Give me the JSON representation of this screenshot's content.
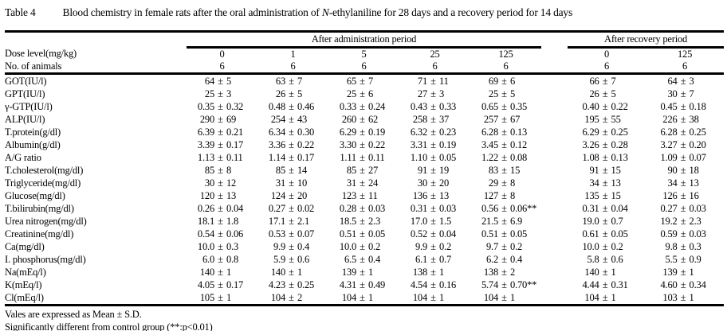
{
  "title": {
    "label": "Table 4",
    "caption_part1": "Blood chemistry in female rats after the oral administration of ",
    "caption_compound": "N",
    "caption_part2": "-ethylaniline for 28 days and a recovery period for 14 days"
  },
  "table": {
    "group_headers": {
      "administration": "After administration period",
      "recovery": "After recovery period"
    },
    "dose_label": "Dose level(mg/kg)",
    "doses": [
      "0",
      "1",
      "5",
      "25",
      "125",
      "0",
      "125"
    ],
    "animals_label": "No. of animals",
    "animals": [
      "6",
      "6",
      "6",
      "6",
      "6",
      "6",
      "6"
    ],
    "plus_minus": "±",
    "rows": [
      {
        "label": "GOT(IU/l)",
        "values": [
          [
            "64",
            "5"
          ],
          [
            "63",
            "7"
          ],
          [
            "65",
            "7"
          ],
          [
            "71",
            "11"
          ],
          [
            "69",
            "6"
          ],
          [
            "66",
            "7"
          ],
          [
            "64",
            "3"
          ]
        ]
      },
      {
        "label": "GPT(IU/l)",
        "values": [
          [
            "25",
            "3"
          ],
          [
            "26",
            "5"
          ],
          [
            "25",
            "6"
          ],
          [
            "27",
            "3"
          ],
          [
            "25",
            "5"
          ],
          [
            "26",
            "5"
          ],
          [
            "30",
            "7"
          ]
        ]
      },
      {
        "label": "γ-GTP(IU/l)",
        "values": [
          [
            "0.35",
            "0.32"
          ],
          [
            "0.48",
            "0.46"
          ],
          [
            "0.33",
            "0.24"
          ],
          [
            "0.43",
            "0.33"
          ],
          [
            "0.65",
            "0.35"
          ],
          [
            "0.40",
            "0.22"
          ],
          [
            "0.45",
            "0.18"
          ]
        ]
      },
      {
        "label": "ALP(IU/l)",
        "values": [
          [
            "290",
            "69"
          ],
          [
            "254",
            "43"
          ],
          [
            "260",
            "62"
          ],
          [
            "258",
            "37"
          ],
          [
            "257",
            "67"
          ],
          [
            "195",
            "55"
          ],
          [
            "226",
            "38"
          ]
        ]
      },
      {
        "label": "T.protein(g/dl)",
        "values": [
          [
            "6.39",
            "0.21"
          ],
          [
            "6.34",
            "0.30"
          ],
          [
            "6.29",
            "0.19"
          ],
          [
            "6.32",
            "0.23"
          ],
          [
            "6.28",
            "0.13"
          ],
          [
            "6.29",
            "0.25"
          ],
          [
            "6.28",
            "0.25"
          ]
        ]
      },
      {
        "label": "Albumin(g/dl)",
        "values": [
          [
            "3.39",
            "0.17"
          ],
          [
            "3.36",
            "0.22"
          ],
          [
            "3.30",
            "0.22"
          ],
          [
            "3.31",
            "0.19"
          ],
          [
            "3.45",
            "0.12"
          ],
          [
            "3.26",
            "0.28"
          ],
          [
            "3.27",
            "0.20"
          ]
        ]
      },
      {
        "label": "A/G ratio",
        "values": [
          [
            "1.13",
            "0.11"
          ],
          [
            "1.14",
            "0.17"
          ],
          [
            "1.11",
            "0.11"
          ],
          [
            "1.10",
            "0.05"
          ],
          [
            "1.22",
            "0.08"
          ],
          [
            "1.08",
            "0.13"
          ],
          [
            "1.09",
            "0.07"
          ]
        ]
      },
      {
        "label": "T.cholesterol(mg/dl)",
        "values": [
          [
            "85",
            "8"
          ],
          [
            "85",
            "14"
          ],
          [
            "85",
            "27"
          ],
          [
            "91",
            "19"
          ],
          [
            "83",
            "15"
          ],
          [
            "91",
            "15"
          ],
          [
            "90",
            "18"
          ]
        ]
      },
      {
        "label": "Triglyceride(mg/dl)",
        "values": [
          [
            "30",
            "12"
          ],
          [
            "31",
            "10"
          ],
          [
            "31",
            "24"
          ],
          [
            "30",
            "20"
          ],
          [
            "29",
            "8"
          ],
          [
            "34",
            "13"
          ],
          [
            "34",
            "13"
          ]
        ]
      },
      {
        "label": "Glucose(mg/dl)",
        "values": [
          [
            "120",
            "13"
          ],
          [
            "124",
            "20"
          ],
          [
            "123",
            "11"
          ],
          [
            "136",
            "13"
          ],
          [
            "127",
            "8"
          ],
          [
            "135",
            "15"
          ],
          [
            "126",
            "16"
          ]
        ]
      },
      {
        "label": "T.bilirubin(mg/dl)",
        "values": [
          [
            "0.26",
            "0.04"
          ],
          [
            "0.27",
            "0.02"
          ],
          [
            "0.28",
            "0.03"
          ],
          [
            "0.31",
            "0.03"
          ],
          [
            "0.56",
            "0.06**"
          ],
          [
            "0.31",
            "0.04"
          ],
          [
            "0.27",
            "0.03"
          ]
        ]
      },
      {
        "label": "Urea nitrogen(mg/dl)",
        "values": [
          [
            "18.1",
            "1.8"
          ],
          [
            "17.1",
            "2.1"
          ],
          [
            "18.5",
            "2.3"
          ],
          [
            "17.0",
            "1.5"
          ],
          [
            "21.5",
            "6.9"
          ],
          [
            "19.0",
            "0.7"
          ],
          [
            "19.2",
            "2.3"
          ]
        ]
      },
      {
        "label": "Creatinine(mg/dl)",
        "values": [
          [
            "0.54",
            "0.06"
          ],
          [
            "0.53",
            "0.07"
          ],
          [
            "0.51",
            "0.05"
          ],
          [
            "0.52",
            "0.04"
          ],
          [
            "0.51",
            "0.05"
          ],
          [
            "0.61",
            "0.05"
          ],
          [
            "0.59",
            "0.03"
          ]
        ]
      },
      {
        "label": "Ca(mg/dl)",
        "values": [
          [
            "10.0",
            "0.3"
          ],
          [
            "9.9",
            "0.4"
          ],
          [
            "10.0",
            "0.2"
          ],
          [
            "9.9",
            "0.2"
          ],
          [
            "9.7",
            "0.2"
          ],
          [
            "10.0",
            "0.2"
          ],
          [
            "9.8",
            "0.3"
          ]
        ]
      },
      {
        "label": "I. phosphorus(mg/dl)",
        "values": [
          [
            "6.0",
            "0.8"
          ],
          [
            "5.9",
            "0.6"
          ],
          [
            "6.5",
            "0.4"
          ],
          [
            "6.1",
            "0.7"
          ],
          [
            "6.2",
            "0.4"
          ],
          [
            "5.8",
            "0.6"
          ],
          [
            "5.5",
            "0.9"
          ]
        ]
      },
      {
        "label": "Na(mEq/l)",
        "values": [
          [
            "140",
            "1"
          ],
          [
            "140",
            "1"
          ],
          [
            "139",
            "1"
          ],
          [
            "138",
            "1"
          ],
          [
            "138",
            "2"
          ],
          [
            "140",
            "1"
          ],
          [
            "139",
            "1"
          ]
        ]
      },
      {
        "label": "K(mEq/l)",
        "values": [
          [
            "4.05",
            "0.17"
          ],
          [
            "4.23",
            "0.25"
          ],
          [
            "4.31",
            "0.49"
          ],
          [
            "4.54",
            "0.16"
          ],
          [
            "5.74",
            "0.70**"
          ],
          [
            "4.44",
            "0.31"
          ],
          [
            "4.60",
            "0.34"
          ]
        ]
      },
      {
        "label": "Cl(mEq/l)",
        "values": [
          [
            "105",
            "1"
          ],
          [
            "104",
            "2"
          ],
          [
            "104",
            "1"
          ],
          [
            "104",
            "1"
          ],
          [
            "104",
            "1"
          ],
          [
            "104",
            "1"
          ],
          [
            "103",
            "1"
          ]
        ]
      }
    ]
  },
  "footnotes": {
    "line1": "Vales are expressed as Mean ± S.D.",
    "line2": "Significantly different from control group (**:p<0.01)"
  }
}
